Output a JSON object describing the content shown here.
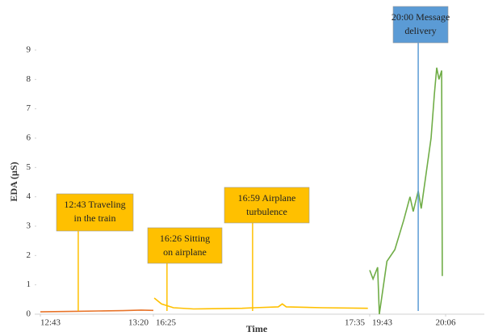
{
  "chart_data": {
    "type": "line",
    "ylabel": "EDA (µS)",
    "xlabel": "Time",
    "ylim": [
      0,
      9
    ],
    "yticks": [
      0,
      1,
      2,
      3,
      4,
      5,
      6,
      7,
      8,
      9
    ],
    "segments": [
      {
        "xlim": [
          763,
          800
        ],
        "xticks": [
          {
            "value": 763,
            "label": "12:43"
          },
          {
            "value": 800,
            "label": "13:20"
          }
        ],
        "color": "#e8742a",
        "x": [
          763,
          770,
          775,
          782,
          790,
          796,
          800
        ],
        "values": [
          0.08,
          0.09,
          0.1,
          0.11,
          0.12,
          0.14,
          0.13
        ]
      },
      {
        "xlim": [
          985,
          1055
        ],
        "xticks": [
          {
            "value": 985,
            "label": "16:25"
          },
          {
            "value": 1055,
            "label": "17:35"
          }
        ],
        "color": "#ffc000",
        "x": [
          985.3,
          987.6,
          991.5,
          998,
          1013.7,
          1017.6,
          1025.4,
          1026.7,
          1028,
          1039.8,
          1054.4
        ],
        "values": [
          0.55,
          0.35,
          0.22,
          0.18,
          0.2,
          0.22,
          0.25,
          0.35,
          0.25,
          0.22,
          0.2
        ]
      },
      {
        "xlim": [
          1183,
          1206
        ],
        "xticks": [
          {
            "value": 1183,
            "label": "19:43"
          },
          {
            "value": 1206,
            "label": "20:06"
          }
        ],
        "color": "#70ad47",
        "x": [
          1183,
          1184,
          1185.4,
          1185.9,
          1188.2,
          1190.6,
          1193.3,
          1195.2,
          1196.2,
          1197.7,
          1198.6,
          1200.1,
          1201.6,
          1202.6,
          1203.3,
          1204,
          1204.8,
          1205
        ],
        "values": [
          1.5,
          1.2,
          1.6,
          0,
          1.8,
          2.2,
          3.2,
          4.0,
          3.5,
          4.2,
          3.6,
          4.8,
          6.0,
          7.5,
          8.4,
          8.0,
          8.3,
          1.3
        ]
      }
    ],
    "annotations": [
      {
        "segment": 0,
        "x": 775.4,
        "lines": [
          "12:43 Traveling",
          "in the train"
        ],
        "color": "#ffc000"
      },
      {
        "segment": 1,
        "x": 989.4,
        "lines": [
          "16:26 Sitting",
          "on airplane"
        ],
        "color": "#ffc000"
      },
      {
        "segment": 1,
        "x": 1017.1,
        "lines": [
          "16:59 Airplane",
          "turbulence"
        ],
        "color": "#ffc000"
      },
      {
        "segment": 2,
        "x": 1197.7,
        "lines": [
          "20:00 Message",
          "delivery"
        ],
        "color": "#5b9bd5"
      }
    ]
  }
}
